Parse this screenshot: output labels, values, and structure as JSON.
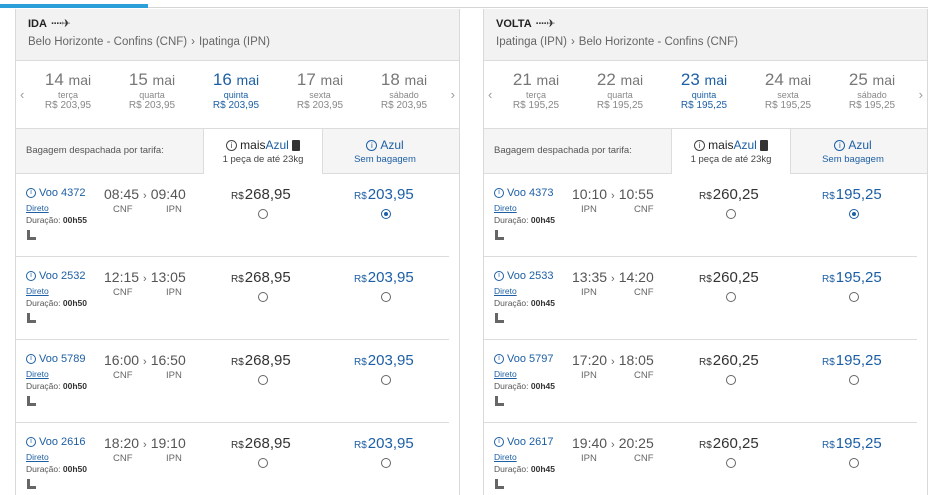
{
  "panels": [
    {
      "direction": "IDA",
      "origin": "Belo Horizonte - Confins (CNF)",
      "destination": "Ipatinga (IPN)",
      "dates": [
        {
          "day": "14",
          "month": "mai",
          "weekday": "terça",
          "price": "R$ 203,95",
          "selected": false
        },
        {
          "day": "15",
          "month": "mai",
          "weekday": "quarta",
          "price": "R$ 203,95",
          "selected": false
        },
        {
          "day": "16",
          "month": "mai",
          "weekday": "quinta",
          "price": "R$ 203,95",
          "selected": true
        },
        {
          "day": "17",
          "month": "mai",
          "weekday": "sexta",
          "price": "R$ 203,95",
          "selected": false
        },
        {
          "day": "18",
          "month": "mai",
          "weekday": "sábado",
          "price": "R$ 203,95",
          "selected": false
        }
      ],
      "baggage_label": "Bagagem despachada por tarifa:",
      "fare1": {
        "mais": "mais",
        "azul": "Azul",
        "desc": "1 peça de até 23kg"
      },
      "fare2": {
        "name": "Azul",
        "desc": "Sem bagagem"
      },
      "flights": [
        {
          "number": "Voo 4372",
          "direct": "Direto",
          "duration_label": "Duração:",
          "duration": "00h55",
          "dep": "08:45",
          "arr": "09:40",
          "from": "CNF",
          "to": "IPN",
          "price1": "268,95",
          "price2": "203,95",
          "selected": 2
        },
        {
          "number": "Voo 2532",
          "direct": "Direto",
          "duration_label": "Duração:",
          "duration": "00h50",
          "dep": "12:15",
          "arr": "13:05",
          "from": "CNF",
          "to": "IPN",
          "price1": "268,95",
          "price2": "203,95",
          "selected": 0
        },
        {
          "number": "Voo 5789",
          "direct": "Direto",
          "duration_label": "Duração:",
          "duration": "00h50",
          "dep": "16:00",
          "arr": "16:50",
          "from": "CNF",
          "to": "IPN",
          "price1": "268,95",
          "price2": "203,95",
          "selected": 0
        },
        {
          "number": "Voo 2616",
          "direct": "Direto",
          "duration_label": "Duração:",
          "duration": "00h50",
          "dep": "18:20",
          "arr": "19:10",
          "from": "CNF",
          "to": "IPN",
          "price1": "268,95",
          "price2": "203,95",
          "selected": 0
        }
      ]
    },
    {
      "direction": "VOLTA",
      "origin": "Ipatinga (IPN)",
      "destination": "Belo Horizonte - Confins (CNF)",
      "dates": [
        {
          "day": "21",
          "month": "mai",
          "weekday": "terça",
          "price": "R$ 195,25",
          "selected": false
        },
        {
          "day": "22",
          "month": "mai",
          "weekday": "quarta",
          "price": "R$ 195,25",
          "selected": false
        },
        {
          "day": "23",
          "month": "mai",
          "weekday": "quinta",
          "price": "R$ 195,25",
          "selected": true
        },
        {
          "day": "24",
          "month": "mai",
          "weekday": "sexta",
          "price": "R$ 195,25",
          "selected": false
        },
        {
          "day": "25",
          "month": "mai",
          "weekday": "sábado",
          "price": "R$ 195,25",
          "selected": false
        }
      ],
      "baggage_label": "Bagagem despachada por tarifa:",
      "fare1": {
        "mais": "mais",
        "azul": "Azul",
        "desc": "1 peça de até 23kg"
      },
      "fare2": {
        "name": "Azul",
        "desc": "Sem bagagem"
      },
      "flights": [
        {
          "number": "Voo 4373",
          "direct": "Direto",
          "duration_label": "Duração:",
          "duration": "00h45",
          "dep": "10:10",
          "arr": "10:55",
          "from": "IPN",
          "to": "CNF",
          "price1": "260,25",
          "price2": "195,25",
          "selected": 2
        },
        {
          "number": "Voo 2533",
          "direct": "Direto",
          "duration_label": "Duração:",
          "duration": "00h45",
          "dep": "13:35",
          "arr": "14:20",
          "from": "IPN",
          "to": "CNF",
          "price1": "260,25",
          "price2": "195,25",
          "selected": 0
        },
        {
          "number": "Voo 5797",
          "direct": "Direto",
          "duration_label": "Duração:",
          "duration": "00h45",
          "dep": "17:20",
          "arr": "18:05",
          "from": "IPN",
          "to": "CNF",
          "price1": "260,25",
          "price2": "195,25",
          "selected": 0
        },
        {
          "number": "Voo 2617",
          "direct": "Direto",
          "duration_label": "Duração:",
          "duration": "00h45",
          "dep": "19:40",
          "arr": "20:25",
          "from": "IPN",
          "to": "CNF",
          "price1": "260,25",
          "price2": "195,25",
          "selected": 0
        }
      ]
    }
  ],
  "currency": "R$",
  "icons": {
    "plane": "airplane-icon",
    "seat": "seat-icon",
    "info": "info-icon",
    "bag": "baggage-icon",
    "prev": "chevron-left-icon",
    "next": "chevron-right-icon"
  },
  "colors": {
    "accent": "#1d5fa5",
    "tab_accent": "#2b9fd9"
  }
}
